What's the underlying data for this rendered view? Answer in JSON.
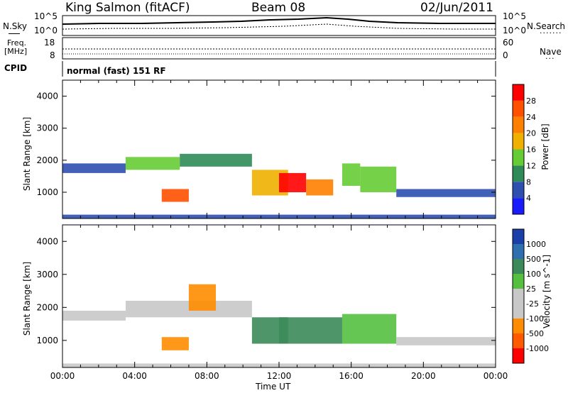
{
  "header": {
    "station": "King Salmon (fitACF)",
    "beam": "Beam 08",
    "date": "02/Jun/2011"
  },
  "side_labels": {
    "nsky": "N.Sky",
    "nsearch": "N.Search",
    "freq_line1": "Freq.",
    "freq_line2": "[MHz]",
    "nave": "Nave",
    "cpid": "CPID",
    "nsky_top": "10^5",
    "nsky_bottom": "10^0",
    "nsearch_top": "10^5",
    "nsearch_bottom": "10^0",
    "freq_top": "18",
    "freq_bottom": "8",
    "nave_top": "60",
    "nave_bottom": "0"
  },
  "cpid_text": "normal (fast) 151 RF",
  "colors": {
    "power_scale": [
      "#1a1aff",
      "#2f4fb0",
      "#2e8b57",
      "#66cc33",
      "#f0b000",
      "#ff8000",
      "#ff5000",
      "#ff0000"
    ],
    "velocity_scale": [
      "#1a3fa8",
      "#2f6fb0",
      "#3c8a5a",
      "#55c040",
      "#c8c8c8",
      "#c8c8c8",
      "#ff8c00",
      "#ff5a00",
      "#ff0000"
    ]
  },
  "chart_data": [
    {
      "type": "heatmap",
      "name": "power",
      "ylabel": "Slant Range [km]",
      "y_ticks": [
        1000,
        2000,
        3000,
        4000
      ],
      "ylim": [
        180,
        4500
      ],
      "colorbar_label": "Power [dB]",
      "colorbar_ticks": [
        4,
        8,
        12,
        16,
        20,
        24,
        28
      ],
      "regions": [
        {
          "t0": 0.0,
          "t1": 3.5,
          "r0": 1600,
          "r1": 1900,
          "level": 1
        },
        {
          "t0": 3.5,
          "t1": 6.5,
          "r0": 1700,
          "r1": 2100,
          "level": 3
        },
        {
          "t0": 6.5,
          "t1": 10.5,
          "r0": 1800,
          "r1": 2200,
          "level": 2
        },
        {
          "t0": 5.5,
          "t1": 7.0,
          "r0": 700,
          "r1": 1100,
          "level": 6
        },
        {
          "t0": 10.5,
          "t1": 12.5,
          "r0": 900,
          "r1": 1700,
          "level": 4
        },
        {
          "t0": 12.0,
          "t1": 13.5,
          "r0": 1000,
          "r1": 1600,
          "level": 7
        },
        {
          "t0": 13.5,
          "t1": 15.0,
          "r0": 900,
          "r1": 1400,
          "level": 5
        },
        {
          "t0": 15.5,
          "t1": 16.5,
          "r0": 1200,
          "r1": 1900,
          "level": 3
        },
        {
          "t0": 16.5,
          "t1": 18.5,
          "r0": 1000,
          "r1": 1800,
          "level": 3
        },
        {
          "t0": 18.5,
          "t1": 24.0,
          "r0": 850,
          "r1": 1100,
          "level": 1
        },
        {
          "t0": 0.0,
          "t1": 24.0,
          "r0": 180,
          "r1": 300,
          "level": 1
        }
      ]
    },
    {
      "type": "heatmap",
      "name": "velocity",
      "ylabel": "Slant Range [km]",
      "y_ticks": [
        1000,
        2000,
        3000,
        4000
      ],
      "ylim": [
        180,
        4500
      ],
      "colorbar_label": "Velocity [m s^-1]",
      "colorbar_ticks": [
        1000,
        500,
        100,
        25,
        -25,
        -100,
        -500,
        -1000
      ],
      "regions": [
        {
          "t0": 0.0,
          "t1": 3.5,
          "r0": 1600,
          "r1": 1900,
          "level": 4
        },
        {
          "t0": 3.5,
          "t1": 10.5,
          "r0": 1700,
          "r1": 2200,
          "level": 4
        },
        {
          "t0": 5.5,
          "t1": 7.0,
          "r0": 700,
          "r1": 1100,
          "level": 6
        },
        {
          "t0": 7.0,
          "t1": 8.5,
          "r0": 1900,
          "r1": 2700,
          "level": 6
        },
        {
          "t0": 10.5,
          "t1": 12.5,
          "r0": 900,
          "r1": 1700,
          "level": 2
        },
        {
          "t0": 12.0,
          "t1": 15.5,
          "r0": 900,
          "r1": 1700,
          "level": 2
        },
        {
          "t0": 15.5,
          "t1": 18.5,
          "r0": 900,
          "r1": 1800,
          "level": 3
        },
        {
          "t0": 18.5,
          "t1": 24.0,
          "r0": 850,
          "r1": 1100,
          "level": 4
        },
        {
          "t0": 0.0,
          "t1": 24.0,
          "r0": 180,
          "r1": 300,
          "level": 4
        }
      ]
    }
  ],
  "x_axis": {
    "label": "Time UT",
    "ticks": [
      "00:00",
      "04:00",
      "08:00",
      "12:00",
      "16:00",
      "20:00",
      "00:00"
    ]
  }
}
